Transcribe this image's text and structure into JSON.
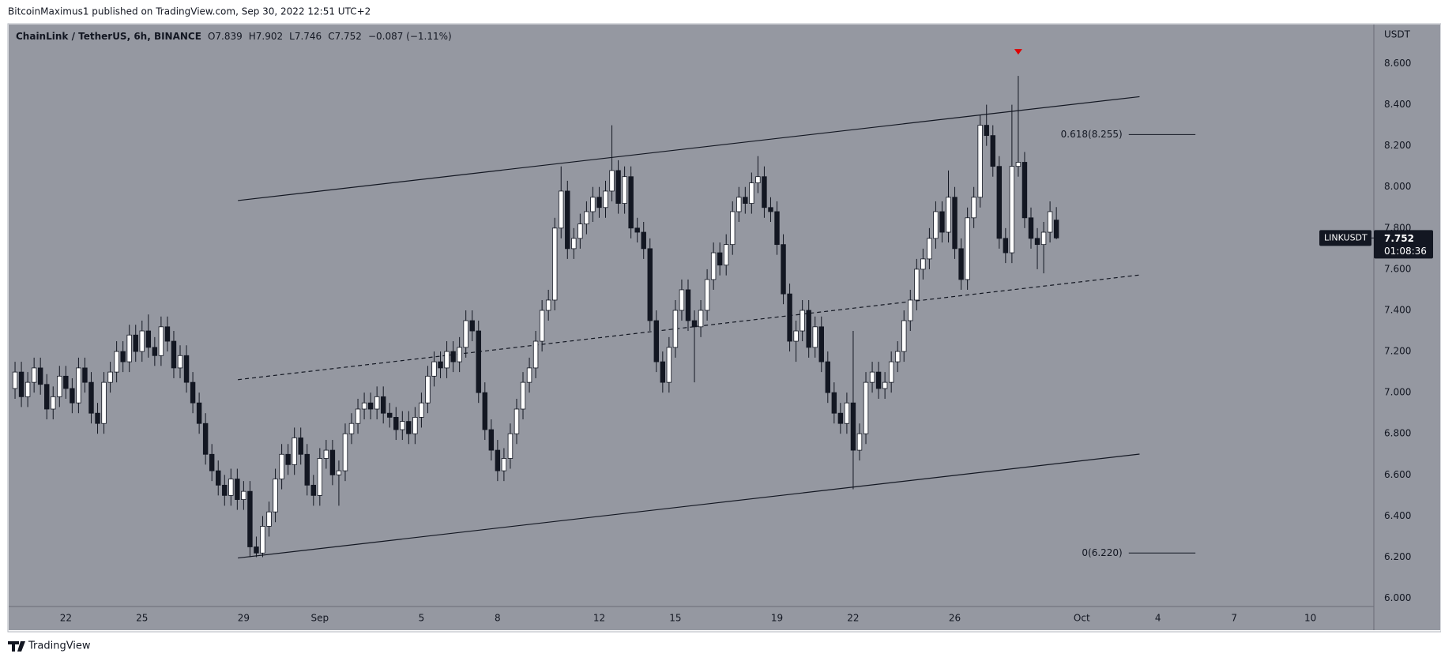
{
  "header": "BitcoinMaximus1 published on TradingView.com, Sep 30, 2022 12:51 UTC+2",
  "footer": "TradingView",
  "chart_data": {
    "type": "candlestick",
    "symbol": "ChainLink / TetherUS, 6h, BINANCE",
    "legend": [
      {
        "key": "O",
        "value": "7.839"
      },
      {
        "key": "H",
        "value": "7.902"
      },
      {
        "key": "L",
        "value": "7.746"
      },
      {
        "key": "C",
        "value": "7.752"
      }
    ],
    "change": "−0.087 (−1.11%)",
    "y_axis_label": "USDT",
    "background": "#9598a1",
    "up_color": "#ffffff",
    "down_color": "#131722",
    "ohlc": [
      [
        7.02,
        7.15,
        6.97,
        7.1
      ],
      [
        7.1,
        7.15,
        6.93,
        6.98
      ],
      [
        6.98,
        7.1,
        6.93,
        7.05
      ],
      [
        7.05,
        7.17,
        7.0,
        7.12
      ],
      [
        7.12,
        7.17,
        6.99,
        7.04
      ],
      [
        7.04,
        7.09,
        6.87,
        6.92
      ],
      [
        6.92,
        7.03,
        6.87,
        6.98
      ],
      [
        6.98,
        7.13,
        6.93,
        7.08
      ],
      [
        7.08,
        7.13,
        6.97,
        7.02
      ],
      [
        7.02,
        7.07,
        6.9,
        6.95
      ],
      [
        6.95,
        7.17,
        6.9,
        7.12
      ],
      [
        7.12,
        7.17,
        7.0,
        7.05
      ],
      [
        7.05,
        7.1,
        6.85,
        6.9
      ],
      [
        6.9,
        6.95,
        6.8,
        6.85
      ],
      [
        6.85,
        7.1,
        6.8,
        7.05
      ],
      [
        7.05,
        7.15,
        7.0,
        7.1
      ],
      [
        7.1,
        7.25,
        7.05,
        7.2
      ],
      [
        7.2,
        7.25,
        7.1,
        7.15
      ],
      [
        7.15,
        7.33,
        7.1,
        7.28
      ],
      [
        7.28,
        7.33,
        7.15,
        7.2
      ],
      [
        7.2,
        7.35,
        7.15,
        7.3
      ],
      [
        7.3,
        7.38,
        7.17,
        7.22
      ],
      [
        7.22,
        7.27,
        7.13,
        7.18
      ],
      [
        7.18,
        7.37,
        7.13,
        7.32
      ],
      [
        7.32,
        7.37,
        7.2,
        7.25
      ],
      [
        7.25,
        7.3,
        7.07,
        7.12
      ],
      [
        7.12,
        7.23,
        7.07,
        7.18
      ],
      [
        7.18,
        7.23,
        7.0,
        7.05
      ],
      [
        7.05,
        7.1,
        6.9,
        6.95
      ],
      [
        6.95,
        7.0,
        6.8,
        6.85
      ],
      [
        6.85,
        6.9,
        6.65,
        6.7
      ],
      [
        6.7,
        6.75,
        6.57,
        6.62
      ],
      [
        6.62,
        6.67,
        6.5,
        6.55
      ],
      [
        6.55,
        6.6,
        6.45,
        6.5
      ],
      [
        6.5,
        6.63,
        6.45,
        6.58
      ],
      [
        6.58,
        6.63,
        6.43,
        6.48
      ],
      [
        6.48,
        6.57,
        6.43,
        6.52
      ],
      [
        6.52,
        6.57,
        6.2,
        6.25
      ],
      [
        6.25,
        6.3,
        6.2,
        6.22
      ],
      [
        6.22,
        6.4,
        6.2,
        6.35
      ],
      [
        6.35,
        6.47,
        6.3,
        6.42
      ],
      [
        6.42,
        6.63,
        6.37,
        6.58
      ],
      [
        6.58,
        6.75,
        6.53,
        6.7
      ],
      [
        6.7,
        6.75,
        6.6,
        6.65
      ],
      [
        6.65,
        6.83,
        6.6,
        6.78
      ],
      [
        6.78,
        6.83,
        6.65,
        6.7
      ],
      [
        6.7,
        6.75,
        6.5,
        6.55
      ],
      [
        6.55,
        6.6,
        6.45,
        6.5
      ],
      [
        6.5,
        6.73,
        6.45,
        6.68
      ],
      [
        6.68,
        6.77,
        6.63,
        6.72
      ],
      [
        6.72,
        6.77,
        6.55,
        6.6
      ],
      [
        6.6,
        6.67,
        6.45,
        6.62
      ],
      [
        6.62,
        6.85,
        6.57,
        6.8
      ],
      [
        6.8,
        6.9,
        6.75,
        6.85
      ],
      [
        6.85,
        6.97,
        6.8,
        6.92
      ],
      [
        6.92,
        7.0,
        6.87,
        6.95
      ],
      [
        6.95,
        7.0,
        6.87,
        6.92
      ],
      [
        6.92,
        7.03,
        6.87,
        6.98
      ],
      [
        6.98,
        7.03,
        6.85,
        6.9
      ],
      [
        6.9,
        6.95,
        6.83,
        6.88
      ],
      [
        6.88,
        6.93,
        6.77,
        6.82
      ],
      [
        6.82,
        6.91,
        6.77,
        6.86
      ],
      [
        6.86,
        6.91,
        6.75,
        6.8
      ],
      [
        6.8,
        6.93,
        6.75,
        6.88
      ],
      [
        6.88,
        7.0,
        6.83,
        6.95
      ],
      [
        6.95,
        7.13,
        6.9,
        7.08
      ],
      [
        7.08,
        7.2,
        7.03,
        7.15
      ],
      [
        7.15,
        7.2,
        7.07,
        7.12
      ],
      [
        7.12,
        7.25,
        7.07,
        7.2
      ],
      [
        7.2,
        7.25,
        7.1,
        7.15
      ],
      [
        7.15,
        7.27,
        7.1,
        7.22
      ],
      [
        7.22,
        7.4,
        7.17,
        7.35
      ],
      [
        7.35,
        7.4,
        7.25,
        7.3
      ],
      [
        7.3,
        7.35,
        6.95,
        7.0
      ],
      [
        7.0,
        7.05,
        6.77,
        6.82
      ],
      [
        6.82,
        6.87,
        6.67,
        6.72
      ],
      [
        6.72,
        6.77,
        6.57,
        6.62
      ],
      [
        6.62,
        6.73,
        6.57,
        6.68
      ],
      [
        6.68,
        6.85,
        6.63,
        6.8
      ],
      [
        6.8,
        6.97,
        6.75,
        6.92
      ],
      [
        6.92,
        7.1,
        6.87,
        7.05
      ],
      [
        7.05,
        7.17,
        7.0,
        7.12
      ],
      [
        7.12,
        7.3,
        7.07,
        7.25
      ],
      [
        7.25,
        7.45,
        7.2,
        7.4
      ],
      [
        7.4,
        7.5,
        7.35,
        7.45
      ],
      [
        7.45,
        7.85,
        7.4,
        7.8
      ],
      [
        7.8,
        8.1,
        7.75,
        7.98
      ],
      [
        7.98,
        8.03,
        7.65,
        7.7
      ],
      [
        7.7,
        7.8,
        7.65,
        7.75
      ],
      [
        7.75,
        7.87,
        7.7,
        7.82
      ],
      [
        7.82,
        7.93,
        7.77,
        7.88
      ],
      [
        7.88,
        8.0,
        7.83,
        7.95
      ],
      [
        7.95,
        8.0,
        7.85,
        7.9
      ],
      [
        7.9,
        8.03,
        7.85,
        7.98
      ],
      [
        7.98,
        8.3,
        7.93,
        8.08
      ],
      [
        8.08,
        8.13,
        7.87,
        7.92
      ],
      [
        7.92,
        8.1,
        7.87,
        8.05
      ],
      [
        8.05,
        8.1,
        7.75,
        7.8
      ],
      [
        7.8,
        7.85,
        7.73,
        7.78
      ],
      [
        7.78,
        7.83,
        7.65,
        7.7
      ],
      [
        7.7,
        7.75,
        7.3,
        7.35
      ],
      [
        7.35,
        7.4,
        7.1,
        7.15
      ],
      [
        7.15,
        7.2,
        7.0,
        7.05
      ],
      [
        7.05,
        7.27,
        7.0,
        7.22
      ],
      [
        7.22,
        7.45,
        7.17,
        7.4
      ],
      [
        7.4,
        7.55,
        7.35,
        7.5
      ],
      [
        7.5,
        7.55,
        7.3,
        7.35
      ],
      [
        7.35,
        7.4,
        7.05,
        7.32
      ],
      [
        7.32,
        7.45,
        7.27,
        7.4
      ],
      [
        7.4,
        7.6,
        7.35,
        7.55
      ],
      [
        7.55,
        7.73,
        7.5,
        7.68
      ],
      [
        7.68,
        7.73,
        7.57,
        7.62
      ],
      [
        7.62,
        7.77,
        7.57,
        7.72
      ],
      [
        7.72,
        7.93,
        7.67,
        7.88
      ],
      [
        7.88,
        8.0,
        7.83,
        7.95
      ],
      [
        7.95,
        8.0,
        7.87,
        7.92
      ],
      [
        7.92,
        8.07,
        7.87,
        8.02
      ],
      [
        8.02,
        8.15,
        7.97,
        8.05
      ],
      [
        8.05,
        8.1,
        7.85,
        7.9
      ],
      [
        7.9,
        7.95,
        7.83,
        7.88
      ],
      [
        7.88,
        7.93,
        7.67,
        7.72
      ],
      [
        7.72,
        7.77,
        7.43,
        7.48
      ],
      [
        7.48,
        7.53,
        7.2,
        7.25
      ],
      [
        7.25,
        7.35,
        7.15,
        7.3
      ],
      [
        7.3,
        7.45,
        7.25,
        7.4
      ],
      [
        7.4,
        7.45,
        7.17,
        7.22
      ],
      [
        7.22,
        7.37,
        7.17,
        7.32
      ],
      [
        7.32,
        7.37,
        7.1,
        7.15
      ],
      [
        7.15,
        7.2,
        6.95,
        7.0
      ],
      [
        7.0,
        7.05,
        6.85,
        6.9
      ],
      [
        6.9,
        6.95,
        6.8,
        6.85
      ],
      [
        6.85,
        7.0,
        6.8,
        6.95
      ],
      [
        6.95,
        7.3,
        6.53,
        6.72
      ],
      [
        6.72,
        6.85,
        6.67,
        6.8
      ],
      [
        6.8,
        7.1,
        6.75,
        7.05
      ],
      [
        7.05,
        7.15,
        7.0,
        7.1
      ],
      [
        7.1,
        7.15,
        6.97,
        7.02
      ],
      [
        7.02,
        7.1,
        6.97,
        7.05
      ],
      [
        7.05,
        7.2,
        7.0,
        7.15
      ],
      [
        7.15,
        7.25,
        7.1,
        7.2
      ],
      [
        7.2,
        7.4,
        7.15,
        7.35
      ],
      [
        7.35,
        7.5,
        7.3,
        7.45
      ],
      [
        7.45,
        7.65,
        7.4,
        7.6
      ],
      [
        7.6,
        7.7,
        7.55,
        7.65
      ],
      [
        7.65,
        7.8,
        7.6,
        7.75
      ],
      [
        7.75,
        7.93,
        7.7,
        7.88
      ],
      [
        7.88,
        7.93,
        7.73,
        7.78
      ],
      [
        7.78,
        8.08,
        7.73,
        7.95
      ],
      [
        7.95,
        8.0,
        7.65,
        7.7
      ],
      [
        7.7,
        7.75,
        7.5,
        7.55
      ],
      [
        7.55,
        7.9,
        7.5,
        7.85
      ],
      [
        7.85,
        8.0,
        7.8,
        7.95
      ],
      [
        7.95,
        8.35,
        7.9,
        8.3
      ],
      [
        8.3,
        8.4,
        8.2,
        8.25
      ],
      [
        8.25,
        8.3,
        8.05,
        8.1
      ],
      [
        8.1,
        8.15,
        7.7,
        7.75
      ],
      [
        7.75,
        7.8,
        7.63,
        7.68
      ],
      [
        7.68,
        8.4,
        7.63,
        8.1
      ],
      [
        8.1,
        8.54,
        8.05,
        8.12
      ],
      [
        8.12,
        8.17,
        7.8,
        7.85
      ],
      [
        7.85,
        7.9,
        7.7,
        7.75
      ],
      [
        7.75,
        7.8,
        7.6,
        7.72
      ],
      [
        7.72,
        7.83,
        7.58,
        7.78
      ],
      [
        7.78,
        7.93,
        7.73,
        7.88
      ],
      [
        7.839,
        7.902,
        7.746,
        7.752
      ]
    ],
    "xlim": [
      -1,
      214
    ],
    "xticks": [
      {
        "value": 8,
        "label": "22"
      },
      {
        "value": 20,
        "label": "25"
      },
      {
        "value": 36,
        "label": "29"
      },
      {
        "value": 48,
        "label": "Sep"
      },
      {
        "value": 64,
        "label": "5"
      },
      {
        "value": 76,
        "label": "8"
      },
      {
        "value": 92,
        "label": "12"
      },
      {
        "value": 104,
        "label": "15"
      },
      {
        "value": 120,
        "label": "19"
      },
      {
        "value": 132,
        "label": "22"
      },
      {
        "value": 148,
        "label": "26"
      },
      {
        "value": 168,
        "label": "Oct"
      },
      {
        "value": 180,
        "label": "4"
      },
      {
        "value": 192,
        "label": "7"
      },
      {
        "value": 204,
        "label": "10"
      }
    ],
    "ylim": [
      5.96,
      8.79
    ],
    "yticks": [
      {
        "value": 6.0,
        "label": "6.000"
      },
      {
        "value": 6.2,
        "label": "6.200"
      },
      {
        "value": 6.4,
        "label": "6.400"
      },
      {
        "value": 6.6,
        "label": "6.600"
      },
      {
        "value": 6.8,
        "label": "6.800"
      },
      {
        "value": 7.0,
        "label": "7.000"
      },
      {
        "value": 7.2,
        "label": "7.200"
      },
      {
        "value": 7.4,
        "label": "7.400"
      },
      {
        "value": 7.6,
        "label": "7.600"
      },
      {
        "value": 7.8,
        "label": "7.800"
      },
      {
        "value": 8.0,
        "label": "8.000"
      },
      {
        "value": 8.2,
        "label": "8.200"
      },
      {
        "value": 8.4,
        "label": "8.400"
      },
      {
        "value": 8.6,
        "label": "8.600"
      }
    ],
    "channel": {
      "upper": [
        [
          35.1,
          7.934
        ],
        [
          177.1,
          8.439
        ]
      ],
      "middle": [
        [
          35.1,
          7.063
        ],
        [
          177.1,
          7.572
        ]
      ],
      "lower": [
        [
          35.1,
          6.196
        ],
        [
          177.1,
          6.701
        ]
      ]
    },
    "fib_levels": [
      {
        "label": "0.618(8.255)",
        "value": 8.255,
        "x": [
          175.4,
          185.9
        ]
      },
      {
        "label": "0(6.220)",
        "value": 6.22,
        "x": [
          175.4,
          185.9
        ]
      }
    ],
    "last_price": {
      "symbol": "LINKUSDT",
      "value": 7.752,
      "label": "7.752",
      "countdown": "01:08:36"
    }
  }
}
